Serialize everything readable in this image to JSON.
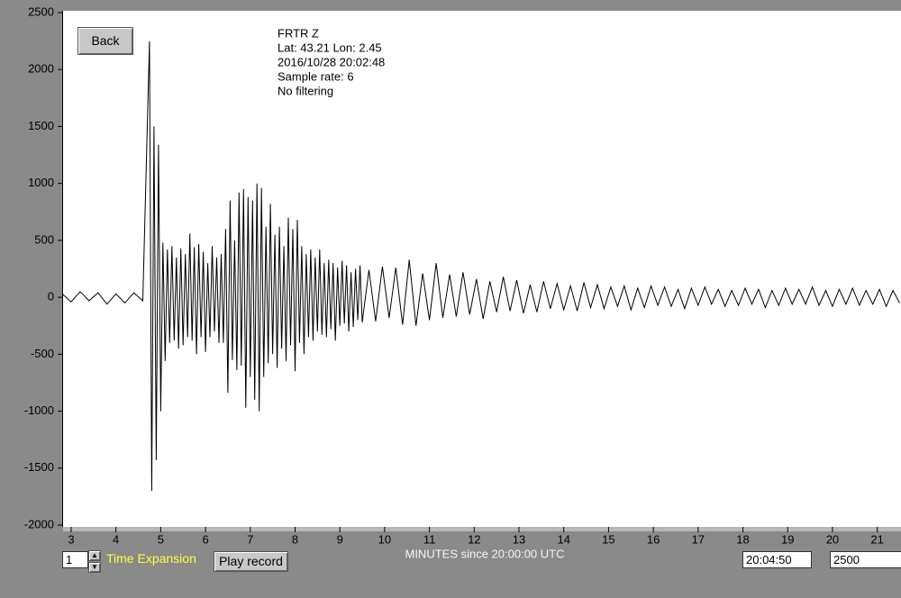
{
  "chart_data": {
    "type": "line",
    "annotations": [
      "FRTR  Z",
      "Lat: 43.21 Lon: 2.45",
      "2016/10/28 20:02:48",
      "Sample rate: 6",
      "No filtering"
    ],
    "x_label": "MINUTES since 20:00:00 UTC",
    "xlim": [
      2.82,
      21.53
    ],
    "ylim": [
      -2000,
      2500
    ],
    "xticks": [
      3,
      4,
      5,
      6,
      7,
      8,
      9,
      10,
      11,
      12,
      13,
      14,
      15,
      16,
      17,
      18,
      19,
      20,
      21
    ],
    "yticks": [
      2500,
      2000,
      1500,
      1000,
      500,
      0,
      -500,
      -1000,
      -1500,
      -2000
    ],
    "series": [
      {
        "color": "#000000",
        "x": [
          2.8,
          3.0,
          3.2,
          3.4,
          3.6,
          3.8,
          4.0,
          4.2,
          4.4,
          4.6,
          4.75,
          4.8,
          4.85,
          4.9,
          4.95,
          5.0,
          5.05,
          5.1,
          5.15,
          5.2,
          5.25,
          5.3,
          5.35,
          5.4,
          5.45,
          5.5,
          5.55,
          5.6,
          5.65,
          5.7,
          5.75,
          5.8,
          5.85,
          5.9,
          5.95,
          6.0,
          6.05,
          6.1,
          6.15,
          6.2,
          6.25,
          6.3,
          6.35,
          6.4,
          6.45,
          6.5,
          6.55,
          6.6,
          6.65,
          6.7,
          6.75,
          6.8,
          6.85,
          6.9,
          6.95,
          7.0,
          7.05,
          7.1,
          7.15,
          7.2,
          7.25,
          7.3,
          7.35,
          7.4,
          7.45,
          7.5,
          7.55,
          7.6,
          7.65,
          7.7,
          7.75,
          7.8,
          7.85,
          7.9,
          7.95,
          8.0,
          8.05,
          8.1,
          8.15,
          8.2,
          8.25,
          8.3,
          8.35,
          8.4,
          8.45,
          8.5,
          8.55,
          8.6,
          8.65,
          8.7,
          8.75,
          8.8,
          8.85,
          8.9,
          8.95,
          9.0,
          9.05,
          9.1,
          9.15,
          9.2,
          9.25,
          9.3,
          9.35,
          9.4,
          9.45,
          9.5,
          9.65,
          9.8,
          9.95,
          10.1,
          10.25,
          10.4,
          10.55,
          10.7,
          10.85,
          11.0,
          11.15,
          11.3,
          11.45,
          11.6,
          11.75,
          11.9,
          12.05,
          12.2,
          12.35,
          12.5,
          12.65,
          12.8,
          12.95,
          13.1,
          13.25,
          13.4,
          13.55,
          13.7,
          13.85,
          14.0,
          14.15,
          14.3,
          14.45,
          14.6,
          14.75,
          14.9,
          15.05,
          15.2,
          15.35,
          15.5,
          15.65,
          15.8,
          15.95,
          16.1,
          16.25,
          16.4,
          16.55,
          16.7,
          16.85,
          17.0,
          17.15,
          17.3,
          17.45,
          17.6,
          17.75,
          17.9,
          18.05,
          18.2,
          18.35,
          18.5,
          18.65,
          18.8,
          18.95,
          19.1,
          19.25,
          19.4,
          19.55,
          19.7,
          19.85,
          20.0,
          20.15,
          20.3,
          20.45,
          20.6,
          20.75,
          20.9,
          21.05,
          21.2,
          21.35,
          21.5
        ],
        "values": [
          30,
          -40,
          50,
          -30,
          40,
          -60,
          30,
          -50,
          40,
          -30,
          2250,
          -1700,
          1500,
          -1430,
          1340,
          -1000,
          480,
          -560,
          420,
          -400,
          450,
          -380,
          350,
          -450,
          430,
          -420,
          380,
          -350,
          560,
          -380,
          440,
          -500,
          470,
          -350,
          400,
          -480,
          300,
          -350,
          450,
          -300,
          350,
          -400,
          380,
          -400,
          600,
          -840,
          850,
          -550,
          500,
          -640,
          920,
          -600,
          950,
          -970,
          880,
          -700,
          850,
          -900,
          1000,
          -1000,
          960,
          -700,
          620,
          -580,
          820,
          -500,
          550,
          -620,
          620,
          -450,
          450,
          -560,
          700,
          -420,
          600,
          -650,
          680,
          -400,
          450,
          -500,
          380,
          -350,
          420,
          -380,
          350,
          -300,
          420,
          -330,
          300,
          -350,
          330,
          -280,
          300,
          -380,
          260,
          -250,
          320,
          -230,
          280,
          -300,
          220,
          -260,
          250,
          -200,
          280,
          -220,
          240,
          -210,
          270,
          -180,
          260,
          -240,
          330,
          -250,
          210,
          -200,
          300,
          -180,
          200,
          -170,
          220,
          -150,
          160,
          -190,
          140,
          -130,
          180,
          -120,
          150,
          -140,
          110,
          -130,
          140,
          -100,
          120,
          -110,
          100,
          -120,
          130,
          -90,
          110,
          -100,
          90,
          -80,
          100,
          -110,
          80,
          -90,
          100,
          -70,
          90,
          -80,
          70,
          -100,
          80,
          -70,
          90,
          -60,
          70,
          -80,
          60,
          -70,
          80,
          -60,
          70,
          -90,
          60,
          -70,
          80,
          -60,
          70,
          -60,
          90,
          -70,
          60,
          -80,
          70,
          -60,
          80,
          -70,
          60,
          -60,
          70,
          -80,
          60,
          -50
        ]
      }
    ]
  },
  "controls": {
    "back": "Back",
    "expansion_value": "1",
    "expansion_label": "Time Expansion",
    "play": "Play record",
    "time": "20:04:50",
    "amplitude": "2500"
  }
}
